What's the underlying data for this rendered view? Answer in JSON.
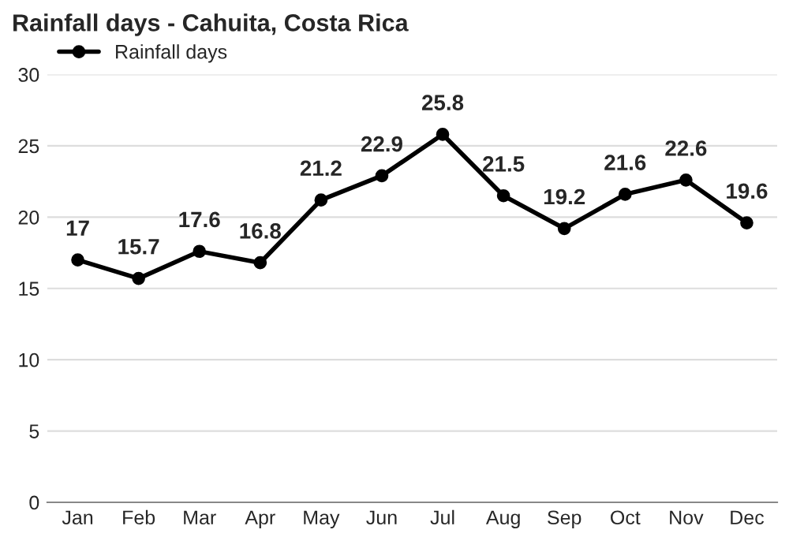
{
  "chart_data": {
    "type": "line",
    "title": "Rainfall days - Cahuita, Costa Rica",
    "categories": [
      "Jan",
      "Feb",
      "Mar",
      "Apr",
      "May",
      "Jun",
      "Jul",
      "Aug",
      "Sep",
      "Oct",
      "Nov",
      "Dec"
    ],
    "series": [
      {
        "name": "Rainfall days",
        "color": "#000000",
        "values": [
          17,
          15.7,
          17.6,
          16.8,
          21.2,
          22.9,
          25.8,
          21.5,
          19.2,
          21.6,
          22.6,
          19.6
        ]
      }
    ],
    "ylim": [
      0,
      30
    ],
    "yticks": [
      0,
      5,
      10,
      15,
      20,
      25,
      30
    ],
    "grid": "y",
    "legend": "top left",
    "marker": "circle",
    "line_style": "solid",
    "data_labels": true
  }
}
